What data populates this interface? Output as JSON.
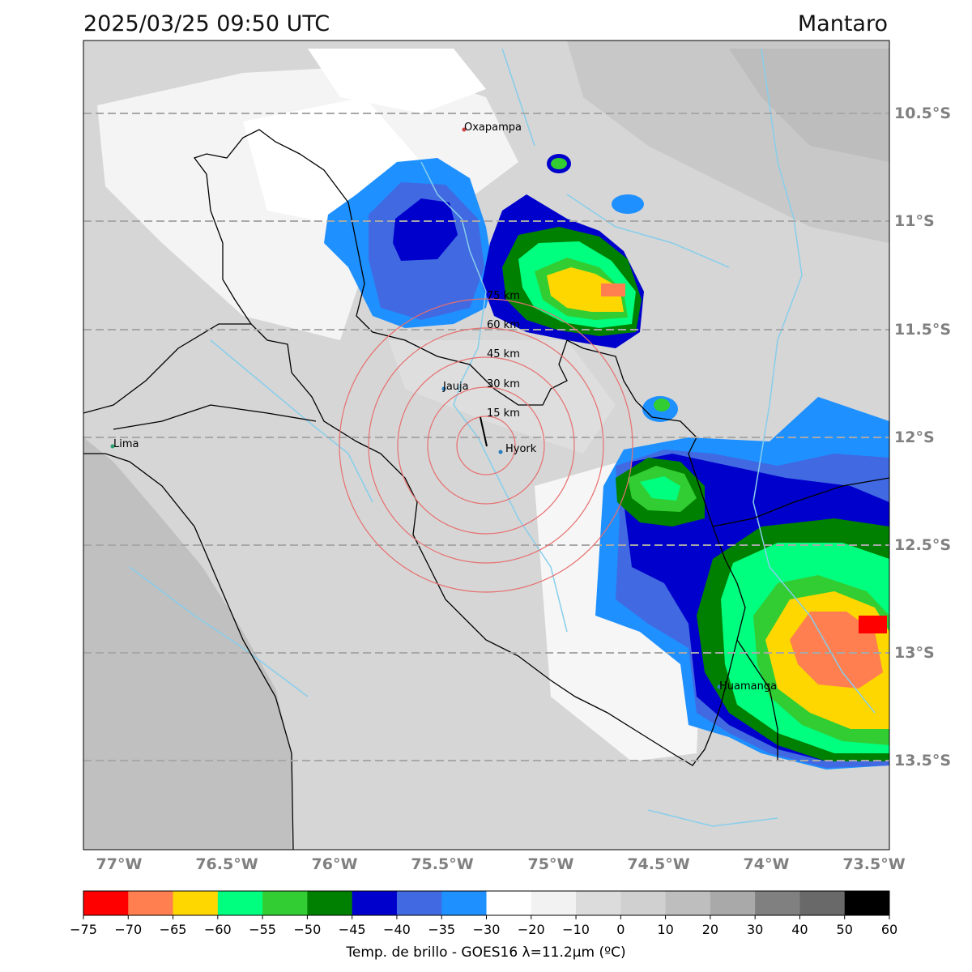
{
  "header": {
    "datetime": "2025/03/25 09:50 UTC",
    "region": "Mantaro"
  },
  "map": {
    "lat_labels": [
      "10.5°S",
      "11°S",
      "11.5°S",
      "12°S",
      "12.5°S",
      "13°S",
      "13.5°S"
    ],
    "lon_labels": [
      "77°W",
      "76.5°W",
      "76°W",
      "75.5°W",
      "75°W",
      "74.5°W",
      "74°W",
      "73.5°W"
    ],
    "cities": [
      "Oxapampa",
      "Jauja",
      "Lima",
      "Hyork",
      "Huamanga"
    ],
    "ring_labels": [
      "75 km",
      "60 km",
      "45 km",
      "30 km",
      "15 km"
    ]
  },
  "colorbar": {
    "ticks": [
      "−75",
      "−70",
      "−65",
      "−60",
      "−55",
      "−50",
      "−45",
      "−40",
      "−35",
      "−30",
      "−20",
      "−10",
      "0",
      "10",
      "20",
      "30",
      "40",
      "50",
      "60"
    ],
    "colors": [
      "#ff0000",
      "#ff7f50",
      "#ffd700",
      "#00ff7f",
      "#32cd32",
      "#008000",
      "#0000cd",
      "#4169e1",
      "#1e90ff",
      "#ffffff",
      "#f2f2f2",
      "#dcdcdc",
      "#d0d0d0",
      "#bebebe",
      "#a9a9a9",
      "#808080",
      "#696969",
      "#000000"
    ],
    "label": "Temp. de brillo - GOES16 λ=11.2μm (ºC)"
  }
}
